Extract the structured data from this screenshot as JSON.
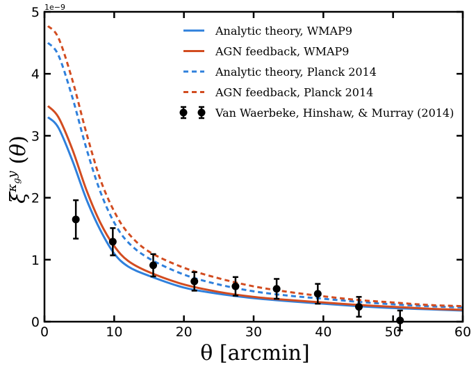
{
  "chart_data": {
    "type": "line",
    "xlabel": "θ [arcmin]",
    "ylabel": "ξ^{κ_g y}(θ)",
    "y_scale_label": "1e−9",
    "xlim": [
      0,
      60
    ],
    "ylim": [
      0,
      5
    ],
    "x_ticks": [
      0,
      10,
      20,
      30,
      40,
      50,
      60
    ],
    "y_ticks": [
      0,
      1,
      2,
      3,
      4,
      5
    ],
    "grid": false,
    "legend_position": "top-right",
    "colors": {
      "blue": "#2f80dc",
      "red": "#d24c20",
      "points": "#000000"
    },
    "series": [
      {
        "name": "Analytic theory, WMAP9",
        "style": "solid",
        "color": "#2f80dc",
        "x": [
          0.5,
          2,
          4,
          6,
          8,
          10,
          12,
          15,
          20,
          25,
          30,
          35,
          40,
          45,
          50,
          55,
          60
        ],
        "y": [
          3.3,
          3.13,
          2.6,
          1.98,
          1.48,
          1.1,
          0.89,
          0.74,
          0.55,
          0.45,
          0.38,
          0.33,
          0.29,
          0.25,
          0.22,
          0.2,
          0.18
        ]
      },
      {
        "name": "AGN feedback, WMAP9",
        "style": "solid",
        "color": "#d24c20",
        "x": [
          0.5,
          2,
          4,
          6,
          8,
          10,
          12,
          15,
          20,
          25,
          30,
          35,
          40,
          45,
          50,
          55,
          60
        ],
        "y": [
          3.48,
          3.3,
          2.78,
          2.13,
          1.6,
          1.22,
          0.98,
          0.8,
          0.6,
          0.48,
          0.4,
          0.35,
          0.31,
          0.27,
          0.24,
          0.21,
          0.19
        ]
      },
      {
        "name": "Analytic theory, Planck 2014",
        "style": "dashed",
        "color": "#2f80dc",
        "x": [
          0.5,
          2,
          4,
          6,
          8,
          10,
          12,
          15,
          20,
          25,
          30,
          35,
          40,
          45,
          50,
          55,
          60
        ],
        "y": [
          4.5,
          4.3,
          3.62,
          2.8,
          2.1,
          1.6,
          1.28,
          1.02,
          0.76,
          0.6,
          0.49,
          0.42,
          0.37,
          0.32,
          0.28,
          0.25,
          0.23
        ]
      },
      {
        "name": "AGN feedback, Planck 2014",
        "style": "dashed",
        "color": "#d24c20",
        "x": [
          0.5,
          2,
          4,
          6,
          8,
          10,
          12,
          15,
          20,
          25,
          30,
          35,
          40,
          45,
          50,
          55,
          60
        ],
        "y": [
          4.77,
          4.58,
          3.9,
          3.05,
          2.3,
          1.78,
          1.43,
          1.13,
          0.87,
          0.7,
          0.57,
          0.48,
          0.41,
          0.35,
          0.31,
          0.27,
          0.25
        ]
      }
    ],
    "points": {
      "name": "Van Waerbeke, Hinshaw, & Murray (2014)",
      "x": [
        4.5,
        9.8,
        15.6,
        21.5,
        27.4,
        33.3,
        39.2,
        45.1,
        51.0
      ],
      "y": [
        1.65,
        1.29,
        0.91,
        0.65,
        0.57,
        0.53,
        0.45,
        0.24,
        0.02
      ],
      "err": [
        0.31,
        0.22,
        0.18,
        0.15,
        0.15,
        0.16,
        0.16,
        0.16,
        0.16
      ]
    }
  }
}
